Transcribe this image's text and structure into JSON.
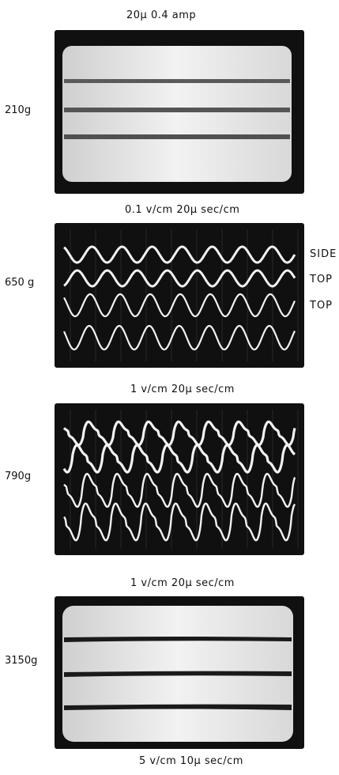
{
  "panels": [
    {
      "caption": "20μ    0.4 amp",
      "weight": "210g",
      "style": "bands",
      "traces": []
    },
    {
      "caption": "0.1 v/cm   20μ sec/cm",
      "weight": "650 g",
      "style": "wave",
      "traces": [
        "SIDE",
        "TOP",
        "TOP"
      ]
    },
    {
      "caption": "1 v/cm    20μ sec/cm",
      "weight": "790g",
      "style": "sharpwave",
      "traces": []
    },
    {
      "caption": "1 v/cm    20μ sec/cm",
      "weight": "3150g",
      "style": "bands",
      "traces": []
    }
  ],
  "footer_caption": "5 v/cm    10μ sec/cm"
}
